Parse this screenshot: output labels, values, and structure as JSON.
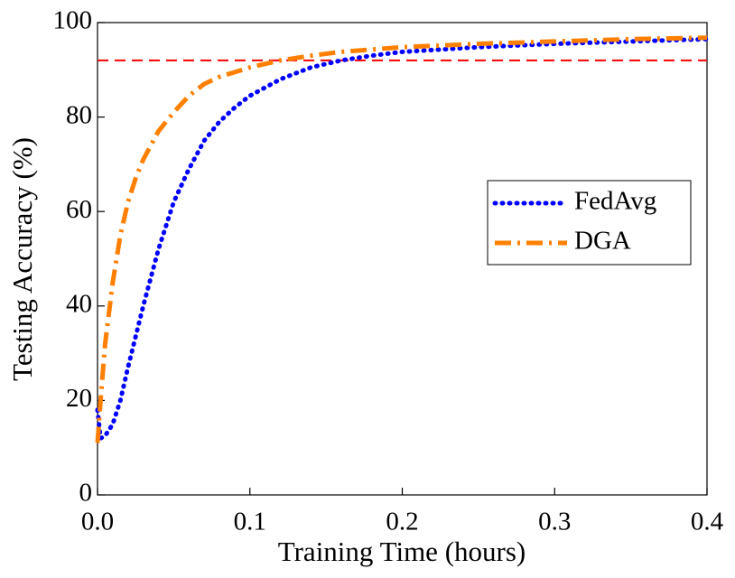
{
  "chart_data": {
    "type": "line",
    "x_label": "Training Time (hours)",
    "y_label": "Testing Accuracy (%)",
    "xlim": [
      0,
      0.4
    ],
    "xticks": [
      {
        "value": 0,
        "label": "0.0"
      },
      0.1,
      0.2,
      0.3,
      0.4
    ],
    "ylim": [
      0,
      100
    ],
    "yticks": [
      0,
      20,
      40,
      60,
      80,
      100
    ],
    "hline": 92,
    "hline_color": "#ff0000",
    "legend": "right",
    "series": [
      {
        "name": "FedAvg",
        "color": "#0000ff",
        "style": "dotted",
        "x": [
          0,
          0.002,
          0.005,
          0.01,
          0.015,
          0.02,
          0.03,
          0.04,
          0.05,
          0.06,
          0.07,
          0.08,
          0.09,
          0.1,
          0.12,
          0.14,
          0.16,
          0.18,
          0.2,
          0.25,
          0.3,
          0.35,
          0.4
        ],
        "values": [
          18,
          12,
          12.5,
          15,
          20,
          27,
          40,
          52,
          62,
          69,
          75,
          79,
          82,
          84.5,
          88,
          90.5,
          92,
          93,
          93.8,
          94.8,
          95.5,
          96,
          96.5
        ]
      },
      {
        "name": "DGA",
        "color": "#ff8000",
        "style": "dashdot",
        "x": [
          0,
          0.002,
          0.005,
          0.01,
          0.015,
          0.02,
          0.025,
          0.03,
          0.04,
          0.05,
          0.06,
          0.07,
          0.08,
          0.1,
          0.12,
          0.14,
          0.16,
          0.18,
          0.2,
          0.25,
          0.3,
          0.35,
          0.4
        ],
        "values": [
          11,
          20,
          32,
          45,
          55,
          62,
          67,
          71,
          77,
          81,
          84.5,
          87,
          88.5,
          90.5,
          92,
          93,
          93.8,
          94.3,
          94.8,
          95.5,
          96,
          96.5,
          96.8
        ]
      }
    ]
  }
}
